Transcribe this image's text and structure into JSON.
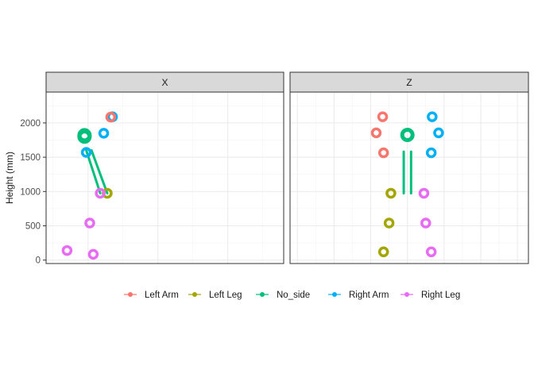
{
  "chart_data": {
    "type": "scatter",
    "title": "",
    "xlabel": "",
    "ylabel": "Height (mm)",
    "ylim": [
      -50,
      2450
    ],
    "y_ticks": [
      0,
      500,
      1000,
      1500,
      2000
    ],
    "grid": true,
    "legend_position": "bottom",
    "legend": [
      {
        "name": "Left Arm",
        "color": "#F8766D"
      },
      {
        "name": "Left Leg",
        "color": "#A3A500"
      },
      {
        "name": "No_side",
        "color": "#00BF7D"
      },
      {
        "name": "Right Arm",
        "color": "#00B0F6"
      },
      {
        "name": "Right Leg",
        "color": "#E76BF3"
      }
    ],
    "panels": [
      {
        "strip": "X",
        "points": [
          {
            "group": "No_side",
            "x": -0.1,
            "y": 1820
          },
          {
            "group": "No_side",
            "x": -0.1,
            "y": 1800
          },
          {
            "group": "Right Arm",
            "x": 0.45,
            "y": 1850
          },
          {
            "group": "Right Arm",
            "x": 0.7,
            "y": 2090
          },
          {
            "group": "Left Arm",
            "x": 0.65,
            "y": 2085
          },
          {
            "group": "Right Arm",
            "x": -0.05,
            "y": 1570
          },
          {
            "group": "Left Leg",
            "x": 0.55,
            "y": 975
          },
          {
            "group": "Right Leg",
            "x": 0.35,
            "y": 975
          },
          {
            "group": "Right Leg",
            "x": 0.05,
            "y": 540
          },
          {
            "group": "Right Leg",
            "x": -0.6,
            "y": 140
          },
          {
            "group": "Right Leg",
            "x": 0.15,
            "y": 85
          }
        ],
        "links": [
          [
            -0.05,
            1600,
            0.35,
            975
          ],
          [
            0.1,
            1600,
            0.55,
            975
          ]
        ]
      },
      {
        "strip": "Z",
        "points": [
          {
            "group": "No_side",
            "x": 0.0,
            "y": 1825
          },
          {
            "group": "Left Arm",
            "x": -1.35,
            "y": 2090
          },
          {
            "group": "Left Arm",
            "x": -1.7,
            "y": 1855
          },
          {
            "group": "Left Arm",
            "x": -1.3,
            "y": 1565
          },
          {
            "group": "Right Arm",
            "x": 1.35,
            "y": 2090
          },
          {
            "group": "Right Arm",
            "x": 1.7,
            "y": 1855
          },
          {
            "group": "Right Arm",
            "x": 1.3,
            "y": 1565
          },
          {
            "group": "Left Leg",
            "x": -0.9,
            "y": 975
          },
          {
            "group": "Right Leg",
            "x": 0.9,
            "y": 975
          },
          {
            "group": "Left Leg",
            "x": -1.0,
            "y": 540
          },
          {
            "group": "Right Leg",
            "x": 1.0,
            "y": 540
          },
          {
            "group": "Left Leg",
            "x": -1.3,
            "y": 120
          },
          {
            "group": "Right Leg",
            "x": 1.3,
            "y": 120
          }
        ],
        "links": [
          [
            -0.2,
            1580,
            -0.2,
            975
          ],
          [
            0.2,
            1580,
            0.2,
            975
          ]
        ]
      }
    ]
  }
}
